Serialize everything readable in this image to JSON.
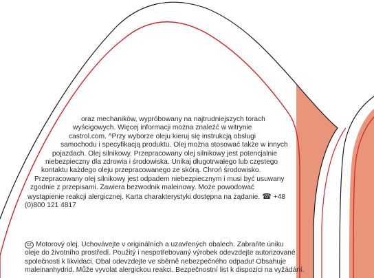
{
  "colors": {
    "band_fill": "#e8957b",
    "outline_black": "#1a1a1a",
    "outline_red": "#d6232a",
    "text": "#2a2a2a"
  },
  "polish_block": {
    "lines": [
      "oraz mechaników, wypróbowany na najtrudniejszych torach",
      "wyścigowych. Więcej informacji można znaleźć w witrynie",
      "castrol.com. ^Przy wyborze oleju kieruj się instrukcją obsługi",
      "samochodu i specyfikacją produktu. Olej można stosować także w innych",
      "pojazdach. Olej silnikowy. Przepracowany olej silnikowy jest potencjalnie",
      "niebezpieczny dla zdrowia i środowiska. Unikaj długotrwałego lub częstego",
      "kontaktu każdego oleju przepracowanego ze skórą. Chroń środowisko.",
      "Przepracowany olej silnikowy jest odpadem niebezpiecznym i musi być usuwany",
      "zgodnie z przepisami. Zawiera bezwodnik maleinowy. Może powodować",
      "wystąpienie reakcji alergicznej. Karta charakterystyki dostępna na żądanie.",
      "+48",
      "(0)800 121 4817"
    ],
    "phone_icon": "telephone-icon"
  },
  "czech_block": {
    "badge": "cz",
    "lines": [
      "Motorový olej. Uchovávejte v originálních a uzavřených obalech. Zabraňte úniku",
      "oleje do životního prostředí. Použitý i nespotřebovaný výrobek odevzdejte autorizované",
      "společnosti k likvidaci. Obal odevzdejte ve sběrně nebezpečného odpadu! Obsahuje",
      "maleinanhydrid. Může vyvolat alergickou reakci. Bezpečnostní list k dispozici na vyžádání."
    ]
  }
}
